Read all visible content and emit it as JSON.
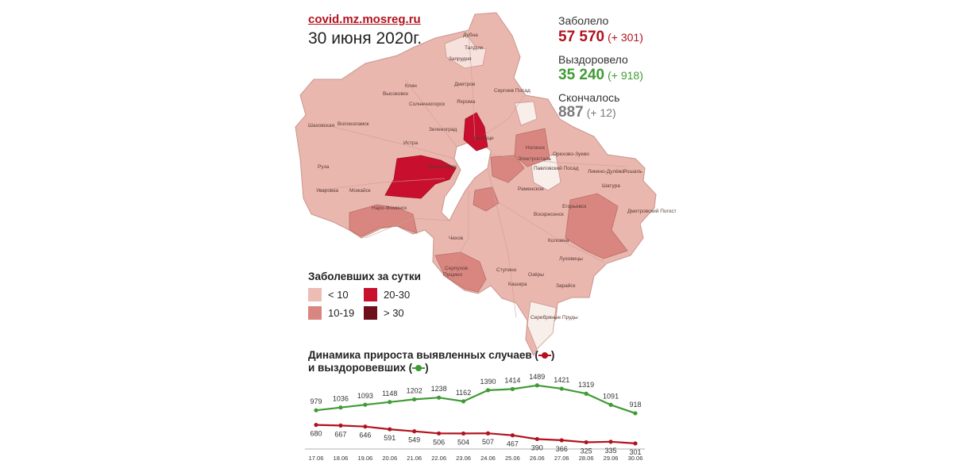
{
  "header": {
    "source": "covid.mz.mosreg.ru",
    "date": "30 июня 2020г."
  },
  "stats": {
    "infected": {
      "label": "Заболело",
      "value": "57 570",
      "delta": "(+ 301)",
      "color": "#b1121e"
    },
    "recovered": {
      "label": "Выздоровело",
      "value": "35 240",
      "delta": "(+ 918)",
      "color": "#3f9b34"
    },
    "deaths": {
      "label": "Скончалось",
      "value": "887",
      "delta": "(+ 12)",
      "color": "#7a7a7a"
    }
  },
  "map": {
    "region_labels": [
      "Дубна",
      "Талдом",
      "Запрудня",
      "Клин",
      "Дмитров",
      "Сергиев Посад",
      "Высоковск",
      "Солнечногорск",
      "Яхрома",
      "Шаховская",
      "Волоколамск",
      "Истра",
      "Зеленоград",
      "Мытищи",
      "Ногинск",
      "Орехово-Зуево",
      "Руза",
      "Красногорск",
      "Электросталь",
      "Павловский Посад",
      "Ликино-Дулёво",
      "Рошаль",
      "Уваровка",
      "Можайск",
      "Раменское",
      "Шатура",
      "Наро-Фоминск",
      "Егорьевск",
      "Дмитровский Погост",
      "Воскресенск",
      "Чехов",
      "Коломна",
      "Серпухов",
      "Луховицы",
      "Пущино",
      "Ступино",
      "Озёры",
      "Зарайск",
      "Кашира",
      "Серебряные Пруды"
    ],
    "legend": {
      "title": "Заболевших за сутки",
      "items": [
        {
          "label": "< 10",
          "color": "#edbcb5"
        },
        {
          "label": "20-30",
          "color": "#c8102e"
        },
        {
          "label": "10-19",
          "color": "#d98680"
        },
        {
          "label": "> 30",
          "color": "#6e0f1c"
        }
      ]
    }
  },
  "chart_title": {
    "line1": "Динамика прироста выявленных случаев (",
    "line1_end": ")",
    "line2": "и выздоровевших (",
    "line2_end": ")"
  },
  "chart_data": {
    "type": "line",
    "x": [
      "17.06",
      "18.06",
      "19.06",
      "20.06",
      "21.06",
      "22.06",
      "23.06",
      "24.06",
      "25.06",
      "26.06",
      "27.06",
      "28.06",
      "29.06",
      "30.06"
    ],
    "series": [
      {
        "color": "#3f9b34",
        "values": [
          979,
          1036,
          1093,
          1148,
          1202,
          1238,
          1162,
          1390,
          1414,
          1489,
          1421,
          1319,
          1091,
          918
        ]
      },
      {
        "color": "#b1121e",
        "values": [
          680,
          667,
          646,
          591,
          549,
          506,
          504,
          507,
          467,
          390,
          366,
          325,
          335,
          301
        ]
      }
    ],
    "title": "Динамика прироста выявленных случаев и выздоровевших",
    "xlabel": "",
    "ylabel": "",
    "grid": false
  }
}
